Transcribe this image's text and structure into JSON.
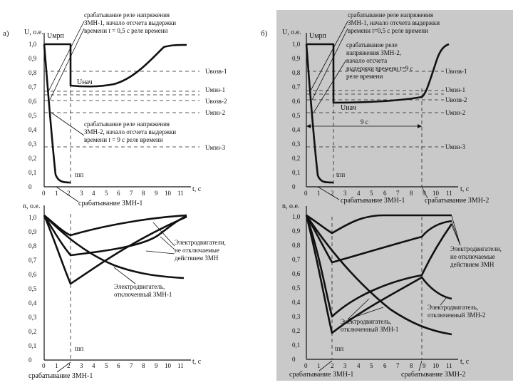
{
  "panels": {
    "a": {
      "label": "а)",
      "top": {
        "ylabel": "U, о.е.",
        "xlabel": "t, с",
        "yticks": [
          "0",
          "0,1",
          "0,2",
          "0,3",
          "0,4",
          "0,5",
          "0,6",
          "0,7",
          "0,8",
          "0,9",
          "1,0"
        ],
        "xticks": [
          "0",
          "1",
          "2",
          "3",
          "4",
          "5",
          "6",
          "7",
          "8",
          "9",
          "10",
          "11"
        ],
        "umrp": "Uмрп",
        "unach": "Uнач",
        "tpp": "tпп",
        "levels": [
          "Uвозв-1",
          "Uмзн-1",
          "Uвозв-2",
          "Uмзн-2",
          "Uмзн-3"
        ],
        "note1": [
          "срабатывание реле напряжения",
          "ЗМН-1, начало отсчета выдержки",
          "времени t = 0,5 с реле времени"
        ],
        "note2": [
          "срабатывание реле напряжения",
          "ЗМН-2, начало отсчета выдержки",
          "времени t = 9 с реле времени"
        ],
        "event": "срабатывание ЗМН-1"
      },
      "bottom": {
        "ylabel": "n, о.е.",
        "xlabel": "t, с",
        "yticks": [
          "0",
          "0,1",
          "0,2",
          "0,3",
          "0,4",
          "0,5",
          "0,6",
          "0,7",
          "0,8",
          "0,9",
          "1,0"
        ],
        "xticks": [
          "0",
          "1",
          "2",
          "3",
          "4",
          "5",
          "6",
          "7",
          "8",
          "9",
          "10",
          "11"
        ],
        "tpp": "tпп",
        "motor1": [
          "Электродвигатели,",
          "не отключаемые",
          "действием ЗМН"
        ],
        "motor2": [
          "Электродвигатель,",
          "отключенный ЗМН-1"
        ],
        "event": "срабатывание ЗМН-1"
      }
    },
    "b": {
      "label": "б)",
      "top": {
        "ylabel": "U, о.е.",
        "xlabel": "t, с",
        "yticks": [
          "0",
          "0,1",
          "0,2",
          "0,3",
          "0,4",
          "0,5",
          "0,6",
          "0,7",
          "0,8",
          "0,9",
          "1,0"
        ],
        "xticks": [
          "0",
          "1",
          "2",
          "3",
          "4",
          "5",
          "6",
          "7",
          "8",
          "9",
          "10",
          "11"
        ],
        "umrp": "Uмрп",
        "unach": "Uнач",
        "tpp": "tпп",
        "interval": "9 с",
        "levels": [
          "Uвозв-1",
          "Uмзн-1",
          "Uвозв-2",
          "Uмзн-2",
          "Uмзн-3"
        ],
        "note1": [
          "срабатывание реле напряжения",
          "ЗМН-1, начало отсчета выдержки",
          "времени t=0,5 с реле времени"
        ],
        "note2": [
          "срабатывание реле",
          "напряжения ЗМН-2,",
          "начало отсчета",
          "выдержки времени t=9 с",
          "реле времени"
        ],
        "event1": "срабатывание ЗМН-1",
        "event2": "срабатывание ЗМН-2"
      },
      "bottom": {
        "ylabel": "n, о.е.",
        "xlabel": "t, с",
        "yticks": [
          "0",
          "0,1",
          "0,2",
          "0,3",
          "0,4",
          "0,5",
          "0,6",
          "0,7",
          "0,8",
          "0,9",
          "1,0"
        ],
        "xticks": [
          "0",
          "1",
          "2",
          "3",
          "4",
          "5",
          "6",
          "7",
          "8",
          "9",
          "10",
          "11"
        ],
        "tpp": "tпп",
        "motor1": [
          "Электродвигатели,",
          "не отключаемые",
          "действием ЗМН"
        ],
        "motor2": [
          "Электродвигатель,",
          "отключенный ЗМН-2"
        ],
        "motor3": [
          "Электродвигатель,",
          "отключенный ЗМН-1"
        ],
        "event1": "срабатывание ЗМН-1",
        "event2": "срабатывание ЗМН-2"
      }
    }
  }
}
